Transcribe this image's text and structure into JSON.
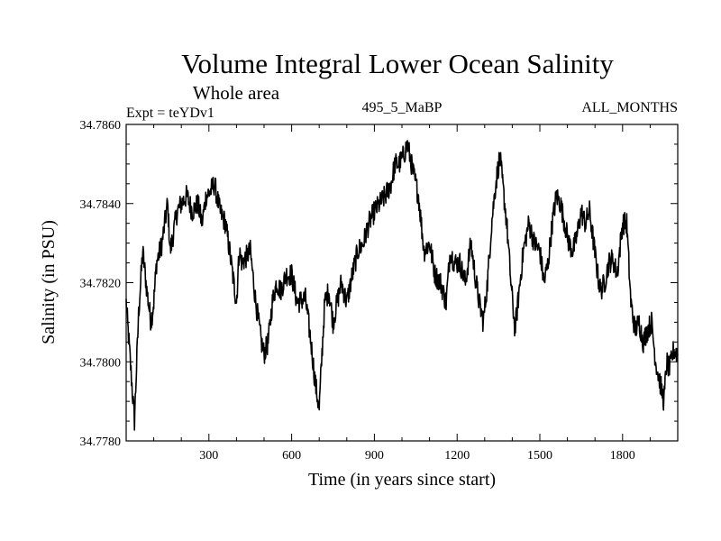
{
  "chart_data": {
    "type": "line",
    "title": "Volume Integral Lower Ocean Salinity",
    "subtitle": "Whole area",
    "experiment_label": "Expt = teYDv1",
    "run_label": "495_5_MaBP",
    "period_label": "ALL_MONTHS",
    "xlabel": "Time (in years since start)",
    "ylabel": "Salinity (in PSU)",
    "xlim": [
      0,
      2000
    ],
    "ylim": [
      34.778,
      34.786
    ],
    "x_ticks": [
      300,
      600,
      900,
      1200,
      1500,
      1800
    ],
    "x_tick_labels": [
      "300",
      "600",
      "900",
      "1200",
      "1500",
      "1800"
    ],
    "y_ticks": [
      34.778,
      34.78,
      34.782,
      34.784,
      34.786
    ],
    "y_tick_labels": [
      "34.7780",
      "34.7800",
      "34.7820",
      "34.7840",
      "34.7860"
    ],
    "grid": false,
    "line_color": "#000000",
    "series": [
      {
        "name": "Salinity",
        "x": [
          0,
          10,
          30,
          45,
          60,
          75,
          90,
          100,
          110,
          130,
          150,
          160,
          170,
          185,
          200,
          220,
          240,
          260,
          275,
          290,
          305,
          320,
          340,
          360,
          375,
          390,
          400,
          410,
          420,
          430,
          450,
          470,
          490,
          500,
          515,
          530,
          545,
          560,
          580,
          600,
          620,
          650,
          670,
          685,
          700,
          710,
          720,
          735,
          750,
          765,
          780,
          800,
          820,
          840,
          860,
          880,
          900,
          920,
          940,
          960,
          975,
          990,
          1005,
          1020,
          1040,
          1060,
          1080,
          1100,
          1120,
          1140,
          1160,
          1175,
          1190,
          1210,
          1230,
          1250,
          1265,
          1280,
          1295,
          1310,
          1325,
          1340,
          1355,
          1365,
          1380,
          1395,
          1410,
          1425,
          1440,
          1460,
          1480,
          1500,
          1515,
          1530,
          1545,
          1560,
          1575,
          1590,
          1605,
          1620,
          1635,
          1650,
          1665,
          1680,
          1695,
          1710,
          1720,
          1735,
          1750,
          1765,
          1780,
          1800,
          1815,
          1830,
          1845,
          1860,
          1875,
          1890,
          1905,
          1920,
          1935,
          1950,
          1960,
          1970,
          1985,
          2000
        ],
        "values": [
          34.7815,
          34.7805,
          34.7785,
          34.7812,
          34.7828,
          34.7818,
          34.781,
          34.7815,
          34.7825,
          34.783,
          34.784,
          34.7828,
          34.7832,
          34.7838,
          34.784,
          34.7842,
          34.7838,
          34.784,
          34.7835,
          34.7842,
          34.7843,
          34.7845,
          34.7838,
          34.7835,
          34.7828,
          34.782,
          34.7815,
          34.7828,
          34.7825,
          34.7826,
          34.7828,
          34.7815,
          34.7805,
          34.7802,
          34.7805,
          34.7815,
          34.782,
          34.7818,
          34.7822,
          34.7822,
          34.7815,
          34.7816,
          34.7805,
          34.7795,
          34.7788,
          34.7802,
          34.7815,
          34.7818,
          34.781,
          34.7815,
          34.782,
          34.7815,
          34.7822,
          34.7828,
          34.783,
          34.7835,
          34.7838,
          34.784,
          34.7842,
          34.7845,
          34.785,
          34.785,
          34.7852,
          34.7855,
          34.7848,
          34.7842,
          34.7828,
          34.783,
          34.7822,
          34.782,
          34.7815,
          34.7828,
          34.7825,
          34.7825,
          34.782,
          34.783,
          34.7822,
          34.7815,
          34.781,
          34.782,
          34.7835,
          34.7845,
          34.7852,
          34.7845,
          34.7835,
          34.782,
          34.7808,
          34.7818,
          34.7828,
          34.7835,
          34.783,
          34.7828,
          34.782,
          34.7825,
          34.7835,
          34.7842,
          34.784,
          34.7835,
          34.783,
          34.7828,
          34.7832,
          34.7838,
          34.7835,
          34.7838,
          34.783,
          34.7822,
          34.7818,
          34.782,
          34.7825,
          34.7826,
          34.7822,
          34.7835,
          34.7835,
          34.7815,
          34.7808,
          34.781,
          34.7805,
          34.7808,
          34.781,
          34.78,
          34.7795,
          34.779,
          34.78,
          34.7798,
          34.7803,
          34.7802
        ]
      }
    ]
  }
}
